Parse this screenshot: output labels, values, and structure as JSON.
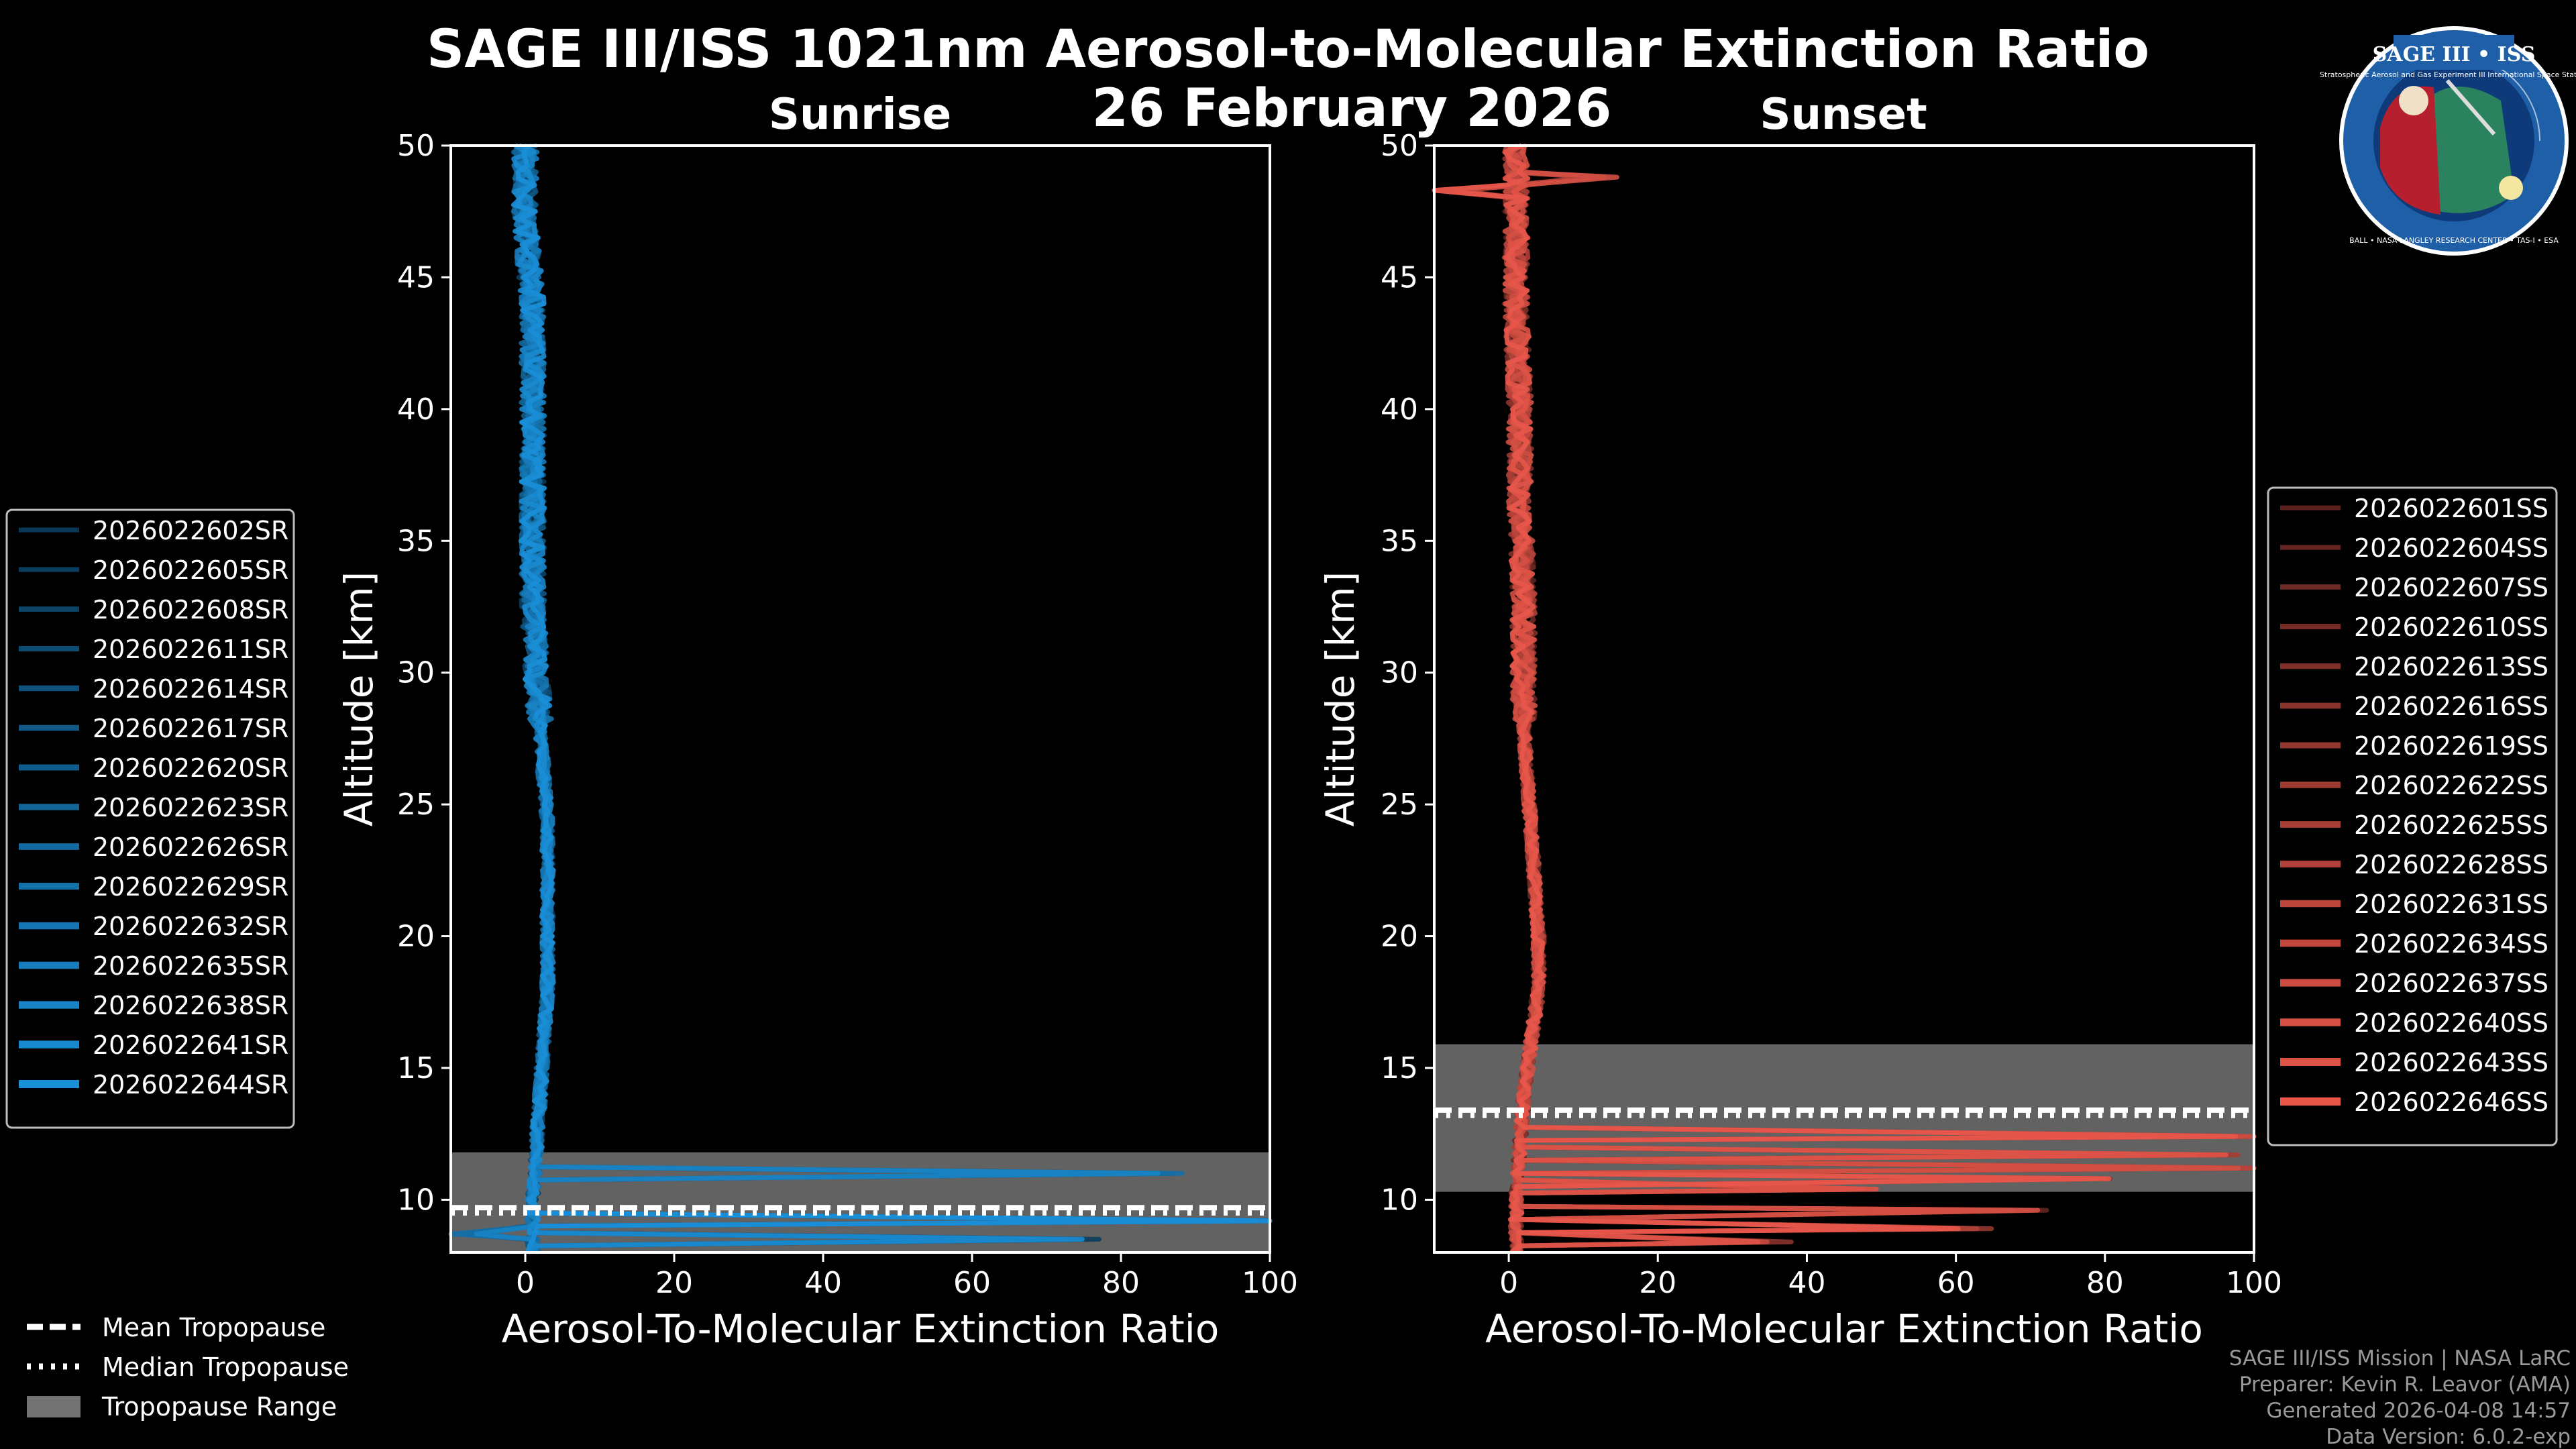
{
  "title": "SAGE III/ISS 1021nm Aerosol-to-Molecular Extinction Ratio",
  "date": "26 February 2026",
  "colors": {
    "sunrise": "#1a8fd8",
    "sunset": "#e8564a",
    "tropo_range": "#737373",
    "background": "#000000"
  },
  "logo": {
    "name": "SAGE III • ISS",
    "tagline": "Stratospheric Aerosol and Gas Experiment III International Space Station",
    "ring": "BALL • NASA LANGLEY RESEARCH CENTER • TAS-I • ESA"
  },
  "tropopause_legend": {
    "mean": "Mean Tropopause",
    "median": "Median Tropopause",
    "range": "Tropopause Range"
  },
  "credits": {
    "line1": "SAGE III/ISS Mission | NASA LaRC",
    "line2": "Preparer: Kevin R. Leavor (AMA)",
    "line3": "Generated 2026-04-08 14:57",
    "line4": "Data Version: 6.0.2-exp"
  },
  "chart_data": [
    {
      "type": "line",
      "panel": "Sunrise",
      "title": "Sunrise",
      "xlabel": "Aerosol-To-Molecular Extinction Ratio",
      "ylabel": "Altitude [km]",
      "xlim": [
        -10,
        100
      ],
      "ylim": [
        8,
        50
      ],
      "xticks": [
        0,
        20,
        40,
        60,
        80,
        100
      ],
      "yticks": [
        10,
        15,
        20,
        25,
        30,
        35,
        40,
        45,
        50
      ],
      "xtick_labels": [
        "0",
        "20",
        "40",
        "60",
        "80",
        "100"
      ],
      "ytick_labels": [
        "10",
        "15",
        "20",
        "25",
        "30",
        "35",
        "40",
        "45",
        "50"
      ],
      "tropopause": {
        "mean_km": 9.7,
        "median_km": 9.5,
        "range_km": [
          8.0,
          11.8
        ]
      },
      "legend_position": "outside-left",
      "series_names": [
        "2026022602SR",
        "2026022605SR",
        "2026022608SR",
        "2026022611SR",
        "2026022614SR",
        "2026022617SR",
        "2026022620SR",
        "2026022623SR",
        "2026022626SR",
        "2026022629SR",
        "2026022632SR",
        "2026022635SR",
        "2026022638SR",
        "2026022641SR",
        "2026022644SR"
      ],
      "typical_profile": {
        "altitude_km": [
          8,
          10,
          12,
          14,
          16,
          18,
          20,
          22,
          24,
          26,
          28,
          30,
          33,
          36,
          40,
          44,
          47,
          50
        ],
        "ratio": [
          1,
          1,
          1.5,
          2,
          2.5,
          3,
          3,
          3,
          3,
          2.5,
          2,
          1.5,
          1,
          1,
          1,
          1,
          0,
          0
        ]
      },
      "spikes": [
        {
          "altitude_km": 11.0,
          "ratio": 86
        },
        {
          "altitude_km": 9.2,
          "ratio": 100
        },
        {
          "altitude_km": 8.5,
          "ratio": 75
        },
        {
          "altitude_km": 8.7,
          "ratio": -9
        }
      ]
    },
    {
      "type": "line",
      "panel": "Sunset",
      "title": "Sunset",
      "xlabel": "Aerosol-To-Molecular Extinction Ratio",
      "ylabel": "Altitude [km]",
      "xlim": [
        -10,
        100
      ],
      "ylim": [
        8,
        50
      ],
      "xticks": [
        0,
        20,
        40,
        60,
        80,
        100
      ],
      "yticks": [
        10,
        15,
        20,
        25,
        30,
        35,
        40,
        45,
        50
      ],
      "xtick_labels": [
        "0",
        "20",
        "40",
        "60",
        "80",
        "100"
      ],
      "ytick_labels": [
        "10",
        "15",
        "20",
        "25",
        "30",
        "35",
        "40",
        "45",
        "50"
      ],
      "tropopause": {
        "mean_km": 13.4,
        "median_km": 13.2,
        "range_km": [
          10.3,
          15.9
        ]
      },
      "legend_position": "outside-right",
      "series_names": [
        "2026022601SS",
        "2026022604SS",
        "2026022607SS",
        "2026022610SS",
        "2026022613SS",
        "2026022616SS",
        "2026022619SS",
        "2026022622SS",
        "2026022625SS",
        "2026022628SS",
        "2026022631SS",
        "2026022634SS",
        "2026022637SS",
        "2026022640SS",
        "2026022643SS",
        "2026022646SS"
      ],
      "typical_profile": {
        "altitude_km": [
          8,
          10,
          12,
          14,
          16,
          18,
          20,
          22,
          24,
          26,
          28,
          30,
          33,
          36,
          40,
          44,
          47,
          50
        ],
        "ratio": [
          1,
          1,
          1.5,
          2,
          3,
          4,
          4,
          3.5,
          3,
          2.5,
          2,
          2,
          2,
          1.5,
          1.5,
          1,
          1,
          1
        ]
      },
      "spikes": [
        {
          "altitude_km": 12.4,
          "ratio": 100
        },
        {
          "altitude_km": 11.7,
          "ratio": 95
        },
        {
          "altitude_km": 11.2,
          "ratio": 100
        },
        {
          "altitude_km": 10.8,
          "ratio": 82
        },
        {
          "altitude_km": 10.4,
          "ratio": 47
        },
        {
          "altitude_km": 9.6,
          "ratio": 70
        },
        {
          "altitude_km": 8.9,
          "ratio": 62
        },
        {
          "altitude_km": 8.4,
          "ratio": 35
        },
        {
          "altitude_km": 48.8,
          "ratio": 12
        },
        {
          "altitude_km": 48.3,
          "ratio": -9
        }
      ]
    }
  ]
}
